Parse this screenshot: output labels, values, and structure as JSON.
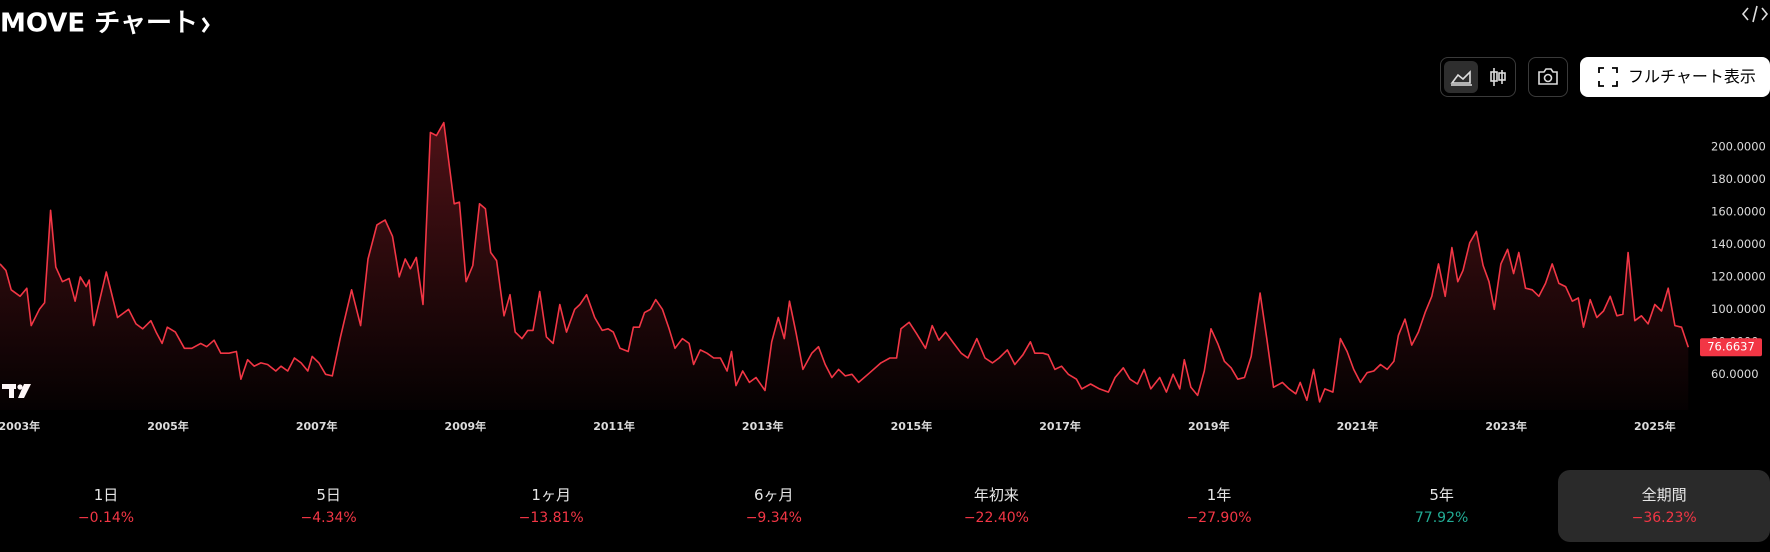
{
  "chart_data": {
    "type": "line",
    "title": "MOVE チャート",
    "color": "#f23645",
    "x": [
      2002.74,
      2002.82,
      2002.89,
      2003.01,
      2003.1,
      2003.16,
      2003.27,
      2003.34,
      2003.42,
      2003.49,
      2003.58,
      2003.67,
      2003.75,
      2003.82,
      2003.9,
      2003.94,
      2004.0,
      2004.17,
      2004.32,
      2004.47,
      2004.57,
      2004.66,
      2004.77,
      2004.84,
      2004.92,
      2004.99,
      2005.1,
      2005.22,
      2005.32,
      2005.44,
      2005.52,
      2005.62,
      2005.71,
      2005.82,
      2005.92,
      2005.98,
      2006.07,
      2006.16,
      2006.25,
      2006.34,
      2006.45,
      2006.52,
      2006.61,
      2006.7,
      2006.79,
      2006.88,
      2006.94,
      2007.03,
      2007.12,
      2007.21,
      2007.32,
      2007.47,
      2007.59,
      2007.69,
      2007.81,
      2007.92,
      2008.02,
      2008.11,
      2008.19,
      2008.26,
      2008.34,
      2008.43,
      2008.53,
      2008.61,
      2008.71,
      2008.85,
      2008.92,
      2009.01,
      2009.1,
      2009.19,
      2009.27,
      2009.34,
      2009.42,
      2009.52,
      2009.6,
      2009.67,
      2009.76,
      2009.84,
      2009.91,
      2010.0,
      2010.09,
      2010.18,
      2010.27,
      2010.36,
      2010.47,
      2010.54,
      2010.63,
      2010.74,
      2010.84,
      2010.92,
      2010.99,
      2011.08,
      2011.19,
      2011.26,
      2011.34,
      2011.41,
      2011.49,
      2011.56,
      2011.65,
      2011.74,
      2011.82,
      2011.92,
      2012.01,
      2012.07,
      2012.16,
      2012.25,
      2012.34,
      2012.43,
      2012.52,
      2012.58,
      2012.64,
      2012.73,
      2012.82,
      2012.91,
      2013.03,
      2013.12,
      2013.21,
      2013.29,
      2013.36,
      2013.45,
      2013.54,
      2013.66,
      2013.75,
      2013.84,
      2013.93,
      2014.02,
      2014.11,
      2014.2,
      2014.29,
      2014.44,
      2014.59,
      2014.71,
      2014.8,
      2014.86,
      2014.97,
      2015.07,
      2015.19,
      2015.28,
      2015.37,
      2015.46,
      2015.57,
      2015.67,
      2015.76,
      2015.88,
      2015.99,
      2016.09,
      2016.18,
      2016.29,
      2016.39,
      2016.5,
      2016.6,
      2016.66,
      2016.77,
      2016.84,
      2016.93,
      2017.02,
      2017.11,
      2017.22,
      2017.29,
      2017.41,
      2017.53,
      2017.65,
      2017.74,
      2017.85,
      2017.94,
      2018.04,
      2018.13,
      2018.22,
      2018.34,
      2018.43,
      2018.52,
      2018.61,
      2018.67,
      2018.76,
      2018.85,
      2018.94,
      2019.03,
      2019.12,
      2019.21,
      2019.3,
      2019.39,
      2019.48,
      2019.57,
      2019.69,
      2019.78,
      2019.87,
      2019.99,
      2020.08,
      2020.17,
      2020.23,
      2020.32,
      2020.41,
      2020.49,
      2020.56,
      2020.67,
      2020.77,
      2020.86,
      2020.95,
      2021.04,
      2021.13,
      2021.22,
      2021.31,
      2021.4,
      2021.49,
      2021.55,
      2021.64,
      2021.73,
      2021.82,
      2021.91,
      2022.0,
      2022.09,
      2022.18,
      2022.27,
      2022.35,
      2022.42,
      2022.51,
      2022.6,
      2022.69,
      2022.77,
      2022.84,
      2022.93,
      2023.02,
      2023.1,
      2023.17,
      2023.26,
      2023.35,
      2023.44,
      2023.53,
      2023.62,
      2023.71,
      2023.8,
      2023.89,
      2023.97,
      2024.04,
      2024.13,
      2024.22,
      2024.31,
      2024.4,
      2024.49,
      2024.57,
      2024.64,
      2024.73,
      2024.82,
      2024.91,
      2025.0,
      2025.09,
      2025.18,
      2025.27,
      2025.36,
      2025.45
    ],
    "values": [
      128,
      124,
      112,
      108,
      113,
      90,
      100,
      104,
      161,
      126,
      117,
      119,
      105,
      120,
      114,
      118,
      90,
      123,
      95,
      100,
      91,
      88,
      93,
      86,
      79,
      89,
      86,
      76,
      76,
      79,
      77,
      81,
      73,
      73,
      74,
      57,
      69,
      65,
      67,
      66,
      62,
      65,
      62,
      70,
      67,
      62,
      71,
      67,
      60,
      59,
      83,
      112,
      90,
      131,
      152,
      155,
      145,
      120,
      131,
      125,
      132,
      103,
      209,
      207,
      215,
      165,
      166,
      117,
      127,
      165,
      162,
      135,
      130,
      96,
      109,
      86,
      82,
      87,
      87,
      111,
      83,
      79,
      103,
      86,
      100,
      103,
      109,
      95,
      87,
      88,
      86,
      76,
      74,
      89,
      89,
      98,
      100,
      106,
      100,
      88,
      76,
      82,
      79,
      66,
      75,
      73,
      70,
      70,
      62,
      74,
      53,
      62,
      55,
      58,
      50,
      80,
      95,
      82,
      105,
      85,
      63,
      73,
      77,
      66,
      58,
      63,
      59,
      60,
      55,
      61,
      67,
      70,
      70,
      88,
      92,
      85,
      76,
      90,
      81,
      86,
      79,
      73,
      70,
      82,
      70,
      67,
      70,
      75,
      66,
      72,
      80,
      73,
      73,
      72,
      63,
      65,
      60,
      57,
      51,
      54,
      51,
      49,
      58,
      64,
      57,
      54,
      63,
      51,
      58,
      49,
      60,
      51,
      69,
      52,
      47,
      62,
      88,
      79,
      68,
      64,
      57,
      58,
      71,
      110,
      82,
      52,
      55,
      51,
      48,
      55,
      44,
      63,
      43,
      51,
      49,
      82,
      74,
      63,
      55,
      61,
      62,
      66,
      63,
      68,
      84,
      94,
      78,
      86,
      98,
      108,
      128,
      108,
      138,
      117,
      124,
      141,
      148,
      127,
      117,
      100,
      128,
      137,
      122,
      135,
      113,
      112,
      108,
      116,
      128,
      116,
      114,
      105,
      107,
      89,
      106,
      95,
      99,
      108,
      96,
      97,
      135,
      93,
      96,
      91,
      103,
      99,
      113,
      90,
      89,
      76.6637
    ],
    "xlim": [
      2002.74,
      2025.5
    ],
    "xticks": [
      {
        "value": 2003,
        "label": "2003年"
      },
      {
        "value": 2005,
        "label": "2005年"
      },
      {
        "value": 2007,
        "label": "2007年"
      },
      {
        "value": 2009,
        "label": "2009年"
      },
      {
        "value": 2011,
        "label": "2011年"
      },
      {
        "value": 2013,
        "label": "2013年"
      },
      {
        "value": 2015,
        "label": "2015年"
      },
      {
        "value": 2017,
        "label": "2017年"
      },
      {
        "value": 2019,
        "label": "2019年"
      },
      {
        "value": 2021,
        "label": "2021年"
      },
      {
        "value": 2023,
        "label": "2023年"
      },
      {
        "value": 2025,
        "label": "2025年"
      }
    ],
    "ylim": [
      38,
      224
    ],
    "yticks": [
      {
        "value": 60,
        "label": "60.0000"
      },
      {
        "value": 80,
        "label": "80.0000"
      },
      {
        "value": 100,
        "label": "100.0000"
      },
      {
        "value": 120,
        "label": "120.0000"
      },
      {
        "value": 140,
        "label": "140.0000"
      },
      {
        "value": 160,
        "label": "160.0000"
      },
      {
        "value": 180,
        "label": "180.0000"
      },
      {
        "value": 200,
        "label": "200.0000"
      }
    ],
    "grid": false
  },
  "toolbar": {
    "full_chart": "フルチャート表示"
  },
  "periods": [
    {
      "label": "1日",
      "change": "−0.14%",
      "color": "#f23645"
    },
    {
      "label": "5日",
      "change": "−4.34%",
      "color": "#f23645"
    },
    {
      "label": "1ヶ月",
      "change": "−13.81%",
      "color": "#f23645"
    },
    {
      "label": "6ヶ月",
      "change": "−9.34%",
      "color": "#f23645"
    },
    {
      "label": "年初来",
      "change": "−22.40%",
      "color": "#f23645"
    },
    {
      "label": "1年",
      "change": "−27.90%",
      "color": "#f23645"
    },
    {
      "label": "5年",
      "change": "77.92%",
      "color": "#22ab94"
    },
    {
      "label": "全期間",
      "change": "−36.23%",
      "color": "#f23645",
      "selected": true
    }
  ]
}
